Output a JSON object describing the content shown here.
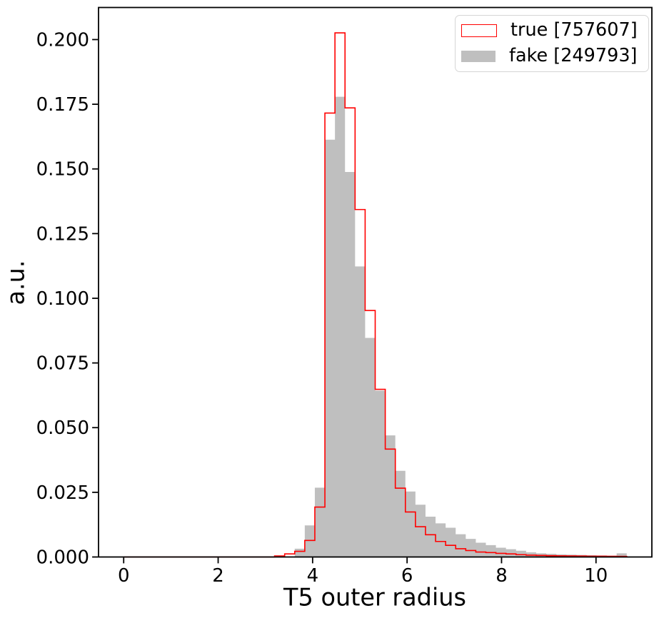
{
  "chart_data": {
    "type": "histogram",
    "title": "",
    "xlabel": "T5 outer radius",
    "ylabel": "a.u.",
    "bin_start": 0,
    "bin_width": 0.213,
    "n_bins": 50,
    "xlim": [
      -0.5325,
      11.1825
    ],
    "ylim": [
      0,
      0.2124
    ],
    "xticks": [
      0,
      2,
      4,
      6,
      8,
      10
    ],
    "yticks": [
      "0.000",
      "0.025",
      "0.050",
      "0.075",
      "0.100",
      "0.125",
      "0.150",
      "0.175",
      "0.200"
    ],
    "ytick_step": 0.025,
    "grid": false,
    "legend_position": "upper right",
    "series": [
      {
        "name": "true [757607]",
        "style": "step",
        "color": "#ff0000",
        "values": [
          0,
          0,
          0,
          0,
          0,
          0,
          0,
          0,
          0,
          0,
          0,
          0,
          0,
          0,
          0,
          0.0004,
          0.0012,
          0.0022,
          0.0064,
          0.0193,
          0.1716,
          0.2026,
          0.1736,
          0.1343,
          0.0953,
          0.0648,
          0.0417,
          0.0266,
          0.0174,
          0.0117,
          0.0086,
          0.006,
          0.0045,
          0.0032,
          0.0025,
          0.0019,
          0.0017,
          0.0014,
          0.0012,
          0.0009,
          0.0007,
          0.0006,
          0.0005,
          0.00045,
          0.0004,
          0.00035,
          0.0003,
          0.00028,
          0.00026,
          0.00024
        ]
      },
      {
        "name": "fake [249793]",
        "style": "filled",
        "color": "#bfbfbf",
        "values": [
          0,
          0,
          0,
          0,
          0,
          0,
          0,
          0,
          0,
          0,
          0,
          0,
          0,
          0,
          0,
          0,
          0,
          0.0032,
          0.0122,
          0.0268,
          0.1613,
          0.1779,
          0.1488,
          0.1123,
          0.0847,
          0.0643,
          0.047,
          0.0333,
          0.0253,
          0.0202,
          0.0156,
          0.013,
          0.0113,
          0.0088,
          0.007,
          0.0055,
          0.0046,
          0.0036,
          0.003,
          0.0024,
          0.0018,
          0.0014,
          0.0012,
          0.001,
          0.0009,
          0.0008,
          0.0007,
          0.0006,
          0.0005,
          0.0014
        ]
      }
    ],
    "axis_color": "#000000"
  }
}
